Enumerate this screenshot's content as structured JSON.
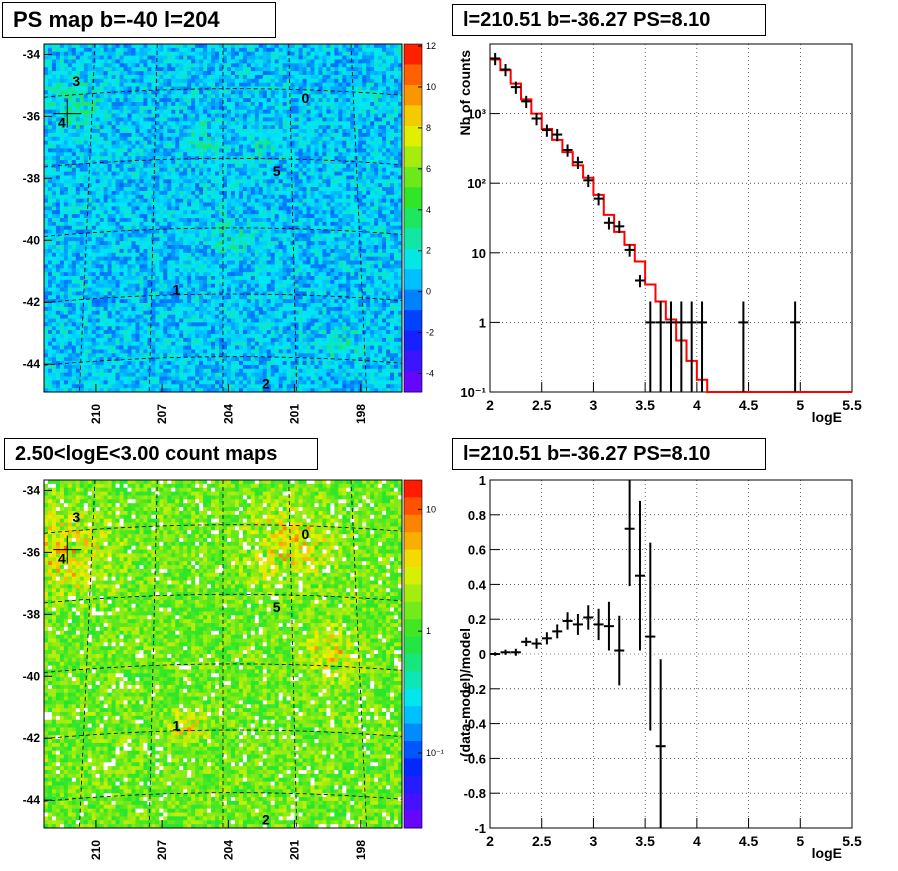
{
  "panels": {
    "map_top_title": "PS map b=-40 l=204",
    "spec_top_title": "l=210.51 b=-36.27 PS=8.10",
    "map_bottom_title": "2.50<logE<3.00 count maps",
    "spec_bottom_title": "l=210.51 b=-36.27 PS=8.10"
  },
  "colors": {
    "data": "#000000",
    "model": "#ff0000",
    "grid": "#000000"
  },
  "chart_data": [
    {
      "type": "heatmap",
      "title": "PS map b=-40 l=204",
      "y_ticks": [
        "-34",
        "-36",
        "-38",
        "-40",
        "-42",
        "-44"
      ],
      "x_ticks": [
        "210",
        "207",
        "204",
        "201",
        "198"
      ],
      "colorbar_ticks": [
        "12",
        "10",
        "8",
        "6",
        "4",
        "2",
        "0",
        "-2",
        "-4"
      ],
      "colorbar_range": [
        -5,
        12
      ],
      "sources": [
        "0",
        "1",
        "2",
        "3",
        "4",
        "5"
      ],
      "palette": "rainbow",
      "background": "cyan-blue"
    },
    {
      "type": "line",
      "title": "l=210.51 b=-36.27 PS=8.10",
      "xlabel": "logE",
      "ylabel": "Nb of counts",
      "yscale": "log",
      "xlim": [
        2,
        5.5
      ],
      "ylim": [
        0.1,
        10000
      ],
      "x_ticks": [
        "2",
        "2.5",
        "3",
        "3.5",
        "4",
        "4.5",
        "5",
        "5.5"
      ],
      "y_ticks": [
        "10⁻¹",
        "1",
        "10",
        "10²",
        "10³"
      ],
      "grid": true,
      "series": [
        {
          "kind": "points",
          "x": [
            2.05,
            2.15,
            2.25,
            2.35,
            2.45,
            2.55,
            2.65,
            2.75,
            2.85,
            2.95,
            3.05,
            3.15,
            3.25,
            3.35,
            3.45,
            3.55,
            3.65,
            3.75,
            3.85,
            3.95,
            4.05,
            4.45,
            4.95
          ],
          "y": [
            6200,
            4300,
            2400,
            1500,
            850,
            580,
            500,
            300,
            200,
            110,
            60,
            27,
            24,
            11,
            4,
            1,
            1,
            1,
            1,
            1,
            1,
            1,
            1
          ]
        },
        {
          "kind": "step",
          "x_edges": [
            2.0,
            2.1,
            2.2,
            2.3,
            2.4,
            2.5,
            2.6,
            2.7,
            2.8,
            2.9,
            3.0,
            3.1,
            3.2,
            3.3,
            3.4,
            3.5,
            3.6,
            3.7,
            3.8,
            3.9,
            4.0,
            4.1,
            5.5
          ],
          "y": [
            6000,
            4200,
            2700,
            1600,
            1000,
            600,
            420,
            280,
            180,
            120,
            68,
            35,
            20,
            13,
            7.5,
            3.5,
            2.0,
            1.1,
            0.55,
            0.28,
            0.15,
            0.1
          ]
        }
      ]
    },
    {
      "type": "heatmap",
      "title": "2.50<logE<3.00 count maps",
      "y_ticks": [
        "-34",
        "-36",
        "-38",
        "-40",
        "-42",
        "-44"
      ],
      "x_ticks": [
        "210",
        "207",
        "204",
        "201",
        "198"
      ],
      "colorbar_ticks": [
        "10",
        "1",
        "10⁻¹"
      ],
      "colorbar_scale": "log",
      "sources": [
        "0",
        "1",
        "2",
        "3",
        "4",
        "5"
      ],
      "palette": "rainbow",
      "background": "yellow-green"
    },
    {
      "type": "scatter",
      "title": "l=210.51 b=-36.27 PS=8.10",
      "xlabel": "logE",
      "ylabel": "(data-model)/model",
      "xlim": [
        2,
        5.5
      ],
      "ylim": [
        -1,
        1
      ],
      "x_ticks": [
        "2",
        "2.5",
        "3",
        "3.5",
        "4",
        "4.5",
        "5",
        "5.5"
      ],
      "y_ticks": [
        "-1",
        "-0.8",
        "-0.6",
        "-0.4",
        "-0.2",
        "0",
        "0.2",
        "0.4",
        "0.6",
        "0.8",
        "1"
      ],
      "grid": true,
      "x": [
        2.05,
        2.15,
        2.25,
        2.35,
        2.45,
        2.55,
        2.65,
        2.75,
        2.85,
        2.95,
        3.05,
        3.15,
        3.25,
        3.35,
        3.45,
        3.55,
        3.65
      ],
      "y": [
        0.0,
        0.01,
        0.01,
        0.07,
        0.06,
        0.09,
        0.13,
        0.19,
        0.17,
        0.21,
        0.17,
        0.16,
        0.02,
        0.72,
        0.45,
        0.1,
        -0.53
      ],
      "yerr": [
        0.01,
        0.015,
        0.02,
        0.025,
        0.03,
        0.035,
        0.04,
        0.05,
        0.06,
        0.07,
        0.09,
        0.14,
        0.2,
        0.33,
        0.43,
        0.54,
        0.5
      ]
    }
  ]
}
